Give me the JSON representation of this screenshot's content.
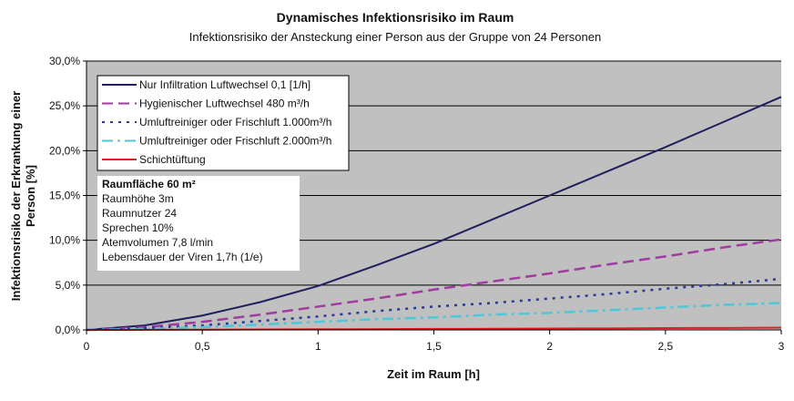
{
  "chart_data": {
    "type": "line",
    "title": "Dynamisches Infektionsrisiko im Raum",
    "subtitle": "Infektionsrisiko der Ansteckung einer Person aus der Gruppe von 24 Personen",
    "xlabel": "Zeit im Raum [h]",
    "ylabel": [
      "Infektionsrisiko der Erkrankung einer",
      "Person [%]"
    ],
    "xlim": [
      0,
      3
    ],
    "ylim": [
      0,
      30
    ],
    "x_ticks": [
      "0",
      "0,5",
      "1",
      "1,5",
      "2",
      "2,5",
      "3"
    ],
    "y_ticks": [
      "0,0%",
      "5,0%",
      "10,0%",
      "15,0%",
      "20,0%",
      "25,0%",
      "30,0%"
    ],
    "grid": true,
    "legend_position": "top-left",
    "x": [
      0,
      0.25,
      0.5,
      0.75,
      1,
      1.25,
      1.5,
      1.75,
      2,
      2.25,
      2.5,
      2.75,
      3
    ],
    "series": [
      {
        "name": "Nur Infiltration Luftwechsel 0,1 [1/h]",
        "color": "#1f1f5e",
        "dash": "solid",
        "values": [
          0,
          0.5,
          1.6,
          3.1,
          4.9,
          7.2,
          9.6,
          12.3,
          15.0,
          17.7,
          20.4,
          23.2,
          26.0
        ]
      },
      {
        "name": "Hygienischer Luftwechsel 480 m³/h",
        "color": "#a03ca0",
        "dash": "dash",
        "values": [
          0,
          0.3,
          0.9,
          1.7,
          2.6,
          3.5,
          4.5,
          5.4,
          6.3,
          7.3,
          8.2,
          9.2,
          10.1
        ]
      },
      {
        "name": "Umluftreiniger oder Frischluft 1.000m³/h",
        "color": "#2a3a9a",
        "dash": "dot",
        "values": [
          0,
          0.2,
          0.5,
          1.0,
          1.5,
          2.1,
          2.6,
          3.0,
          3.5,
          4.0,
          4.6,
          5.1,
          5.7
        ]
      },
      {
        "name": "Umluftreiniger oder Frischluft 2.000m³/h",
        "color": "#4cc8d8",
        "dash": "dashdot",
        "values": [
          0,
          0.1,
          0.3,
          0.6,
          0.9,
          1.2,
          1.4,
          1.7,
          1.9,
          2.2,
          2.5,
          2.8,
          3.0
        ]
      },
      {
        "name": "Schichtüftung",
        "color": "#e02020",
        "dash": "solid",
        "values": [
          0,
          0.01,
          0.03,
          0.05,
          0.07,
          0.09,
          0.11,
          0.13,
          0.15,
          0.17,
          0.2,
          0.22,
          0.25
        ]
      }
    ],
    "annotation": {
      "heading": "Raumfläche 60 m²",
      "lines": [
        "Raumhöhe 3m",
        "Raumnutzer 24",
        "Sprechen 10%",
        "Atemvolumen 7,8 l/min",
        "Lebensdauer der Viren 1,7h (1/e)"
      ]
    },
    "colors": {
      "plot_background": "#c0c0c0",
      "gridline": "#000000"
    }
  }
}
